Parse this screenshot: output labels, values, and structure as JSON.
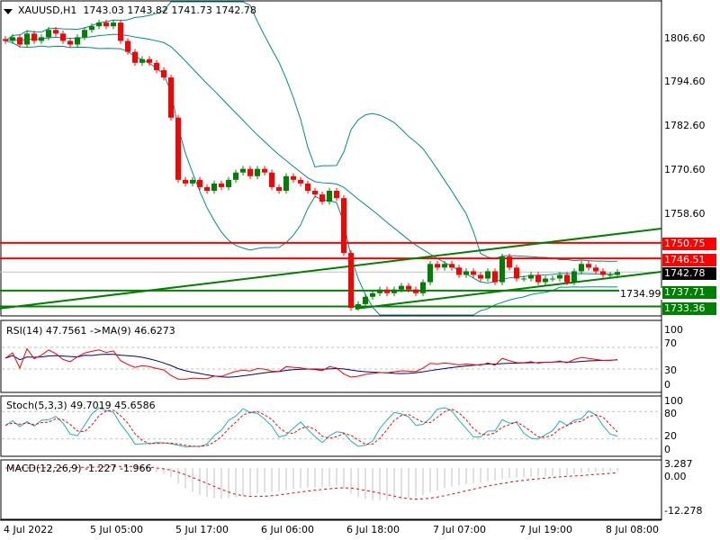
{
  "header": {
    "symbol": "XAUUSD,H1",
    "open": "1743.03",
    "high": "1743.82",
    "low": "1741.73",
    "close": "1742.78"
  },
  "price_axis": [
    "1806.60",
    "1794.60",
    "1782.60",
    "1770.60",
    "1758.60"
  ],
  "level_tags": {
    "r1": "1750.75",
    "r2": "1746.51",
    "current": "1742.78",
    "s1": "1737.71",
    "s2": "1733.36",
    "hidden": "1734.99"
  },
  "rsi": {
    "label": "RSI(14) 47.7561  ->MA(9) 46.6273",
    "axis": [
      "100",
      "70",
      "30",
      "0"
    ]
  },
  "stoch": {
    "label": "Stoch(5,3,3) 49.7019 45.6586",
    "axis": [
      "100",
      "80",
      "20",
      "0"
    ]
  },
  "macd": {
    "label": "MACD(12,26,9) -1.227 -1.966",
    "axis": [
      "3.287",
      "0.00",
      "-12.278"
    ]
  },
  "time_axis": [
    "4 Jul 2022",
    "5 Jul 05:00",
    "5 Jul 17:00",
    "6 Jul 06:00",
    "6 Jul 18:00",
    "7 Jul 07:00",
    "7 Jul 19:00",
    "8 Jul 08:00"
  ],
  "chart_data": {
    "type": "candlestick",
    "title": "XAUUSD,H1",
    "ylim": [
      1730.5,
      1817.2
    ],
    "closes": [
      1806,
      1807,
      1805,
      1808,
      1806,
      1807,
      1809,
      1808,
      1806,
      1805,
      1807,
      1809,
      1810,
      1811,
      1810,
      1811,
      1806,
      1803,
      1800,
      1801,
      1800,
      1798,
      1796,
      1785,
      1768,
      1767,
      1768,
      1766,
      1765,
      1767,
      1766,
      1768,
      1770,
      1771,
      1769,
      1771,
      1770,
      1766,
      1765,
      1769,
      1768,
      1767,
      1765,
      1764,
      1762,
      1765,
      1763,
      1748,
      1733,
      1734,
      1736,
      1737,
      1738,
      1737,
      1738,
      1739,
      1738,
      1737,
      1740,
      1745,
      1744,
      1745,
      1744,
      1742,
      1743,
      1742,
      1741,
      1743,
      1740,
      1747,
      1744,
      1741,
      1741,
      1742,
      1740,
      1741,
      1741,
      1742,
      1740,
      1743,
      1745,
      1744,
      1743,
      1742,
      1742,
      1742.78
    ],
    "horizontal_levels": [
      {
        "price": 1750.75,
        "color": "#ff0000"
      },
      {
        "price": 1746.51,
        "color": "#ff0000"
      },
      {
        "price": 1737.71,
        "color": "#008000"
      },
      {
        "price": 1733.36,
        "color": "#008000"
      }
    ],
    "trendlines": [
      {
        "from_bar": -1,
        "from_price": 1732.75,
        "to_bar": 91.1,
        "to_price": 1754.66,
        "color": "#008000"
      },
      {
        "from_bar": 48.6,
        "from_price": 1732.75,
        "to_bar": 91.1,
        "to_price": 1742.85,
        "color": "#008000"
      }
    ],
    "bollinger": {
      "period": 20,
      "deviations": 2,
      "color": "#008b8b"
    },
    "colors": {
      "bull": "#008000",
      "bear": "#ff0000"
    }
  }
}
